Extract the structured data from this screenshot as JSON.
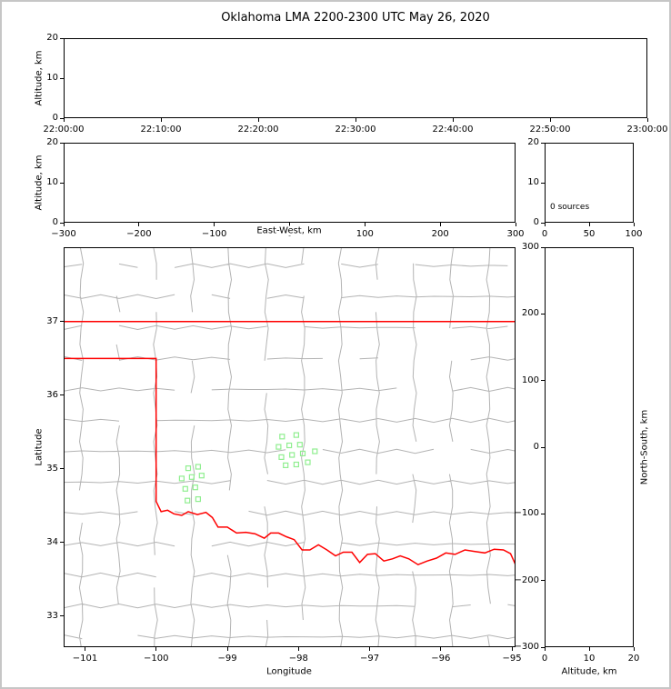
{
  "title": "Oklahoma LMA 2200-2300 UTC May 26, 2020",
  "colors": {
    "background": "#ffffff",
    "figure_frame": "#c6c6c6",
    "axis": "#000000",
    "county_lines": "#b3b3b3",
    "state_border": "#ff0000",
    "station_marker": "#90ee90"
  },
  "chart_data": [
    {
      "panel": "time-height",
      "type": "scatter",
      "xlabel": "",
      "ylabel": "Altitude, km",
      "xlim": [
        0,
        60
      ],
      "ylim": [
        0,
        20
      ],
      "xticks": {
        "values": [
          0,
          10,
          20,
          30,
          40,
          50,
          60
        ],
        "labels": [
          "22:00:00",
          "22:10:00",
          "22:20:00",
          "22:30:00",
          "22:40:00",
          "22:50:00",
          "23:00:00"
        ]
      },
      "yticks": {
        "values": [
          0,
          10,
          20
        ],
        "labels": [
          "0",
          "10",
          "20"
        ]
      },
      "points": []
    },
    {
      "panel": "east-west-height",
      "type": "scatter",
      "xlabel": "East-West, km",
      "ylabel": "Altitude, km",
      "xlim": [
        -300,
        300
      ],
      "ylim": [
        0,
        20
      ],
      "xticks": {
        "values": [
          -300,
          -200,
          -100,
          0,
          100,
          200,
          300
        ],
        "labels": [
          "−300",
          "−200",
          "−100",
          "0",
          "100",
          "200",
          "300"
        ]
      },
      "yticks": {
        "values": [
          0,
          10,
          20
        ],
        "labels": [
          "0",
          "10",
          "20"
        ]
      },
      "points": []
    },
    {
      "panel": "altitude-histogram",
      "type": "histogram",
      "annotation": "0 sources",
      "xlabel": "",
      "ylabel": "",
      "xlim": [
        0,
        100
      ],
      "ylim": [
        0,
        20
      ],
      "xticks": {
        "values": [
          0,
          50,
          100
        ],
        "labels": [
          "0",
          "50",
          "100"
        ]
      },
      "yticks": {
        "values": [
          0,
          10,
          20
        ],
        "labels": [
          "0",
          "10",
          "20"
        ]
      },
      "values": []
    },
    {
      "panel": "plan-view-map",
      "type": "scatter",
      "xlabel": "Longitude",
      "ylabel": "Latitude",
      "xlim": [
        -101.3,
        -94.95
      ],
      "ylim": [
        32.58,
        38.01
      ],
      "xticks": {
        "values": [
          -101,
          -100,
          -99,
          -98,
          -97,
          -96,
          -95
        ],
        "labels": [
          "−101",
          "−100",
          "−99",
          "−98",
          "−97",
          "−96",
          "−95"
        ]
      },
      "yticks": {
        "values": [
          33,
          34,
          35,
          36,
          37
        ],
        "labels": [
          "33",
          "34",
          "35",
          "36",
          "37"
        ]
      },
      "stations": [
        [
          -98.23,
          35.44
        ],
        [
          -98.03,
          35.46
        ],
        [
          -98.28,
          35.3
        ],
        [
          -98.13,
          35.32
        ],
        [
          -97.98,
          35.33
        ],
        [
          -98.24,
          35.16
        ],
        [
          -98.09,
          35.19
        ],
        [
          -97.94,
          35.21
        ],
        [
          -97.77,
          35.24
        ],
        [
          -98.18,
          35.05
        ],
        [
          -98.03,
          35.06
        ],
        [
          -97.87,
          35.09
        ],
        [
          -99.55,
          35.01
        ],
        [
          -99.41,
          35.03
        ],
        [
          -99.64,
          34.87
        ],
        [
          -99.5,
          34.89
        ],
        [
          -99.36,
          34.91
        ],
        [
          -99.59,
          34.73
        ],
        [
          -99.45,
          34.75
        ],
        [
          -99.56,
          34.57
        ],
        [
          -99.41,
          34.59
        ]
      ],
      "state_border": [
        [
          [
            -101.3,
            37.0
          ],
          [
            -94.95,
            37.0
          ]
        ],
        [
          [
            -101.3,
            36.5
          ],
          [
            -100.0,
            36.5
          ],
          [
            -100.0,
            34.56
          ],
          [
            -99.93,
            34.42
          ],
          [
            -99.84,
            34.44
          ],
          [
            -99.75,
            34.39
          ],
          [
            -99.64,
            34.37
          ],
          [
            -99.55,
            34.42
          ],
          [
            -99.42,
            34.38
          ],
          [
            -99.3,
            34.41
          ],
          [
            -99.21,
            34.34
          ],
          [
            -99.13,
            34.21
          ],
          [
            -99.0,
            34.21
          ],
          [
            -98.87,
            34.13
          ],
          [
            -98.74,
            34.14
          ],
          [
            -98.61,
            34.12
          ],
          [
            -98.48,
            34.06
          ],
          [
            -98.39,
            34.13
          ],
          [
            -98.28,
            34.13
          ],
          [
            -98.17,
            34.08
          ],
          [
            -98.06,
            34.04
          ],
          [
            -97.95,
            33.9
          ],
          [
            -97.84,
            33.9
          ],
          [
            -97.72,
            33.97
          ],
          [
            -97.6,
            33.9
          ],
          [
            -97.48,
            33.82
          ],
          [
            -97.37,
            33.87
          ],
          [
            -97.25,
            33.87
          ],
          [
            -97.14,
            33.73
          ],
          [
            -97.03,
            33.84
          ],
          [
            -96.92,
            33.85
          ],
          [
            -96.8,
            33.75
          ],
          [
            -96.68,
            33.78
          ],
          [
            -96.57,
            33.82
          ],
          [
            -96.45,
            33.78
          ],
          [
            -96.32,
            33.7
          ],
          [
            -96.19,
            33.75
          ],
          [
            -96.06,
            33.79
          ],
          [
            -95.93,
            33.86
          ],
          [
            -95.8,
            33.84
          ],
          [
            -95.66,
            33.9
          ],
          [
            -95.52,
            33.88
          ],
          [
            -95.38,
            33.86
          ],
          [
            -95.25,
            33.91
          ],
          [
            -95.12,
            33.9
          ],
          [
            -95.02,
            33.85
          ],
          [
            -94.95,
            33.7
          ]
        ]
      ],
      "county_grid": {
        "lon_start": -101.05,
        "lon_step": 0.52,
        "lon_end": -94.75,
        "lat_start": 32.72,
        "lat_step": 0.42,
        "lat_end": 37.99
      }
    },
    {
      "panel": "north-south-height",
      "type": "scatter",
      "xlabel": "Altitude, km",
      "ylabel": "North-South, km",
      "xlim": [
        0,
        20
      ],
      "ylim": [
        -300,
        300
      ],
      "xticks": {
        "values": [
          0,
          10,
          20
        ],
        "labels": [
          "0",
          "10",
          "20"
        ]
      },
      "yticks": {
        "values": [
          -300,
          -200,
          -100,
          0,
          100,
          200,
          300
        ],
        "labels": [
          "−300",
          "−200",
          "−100",
          "0",
          "100",
          "200",
          "300"
        ]
      },
      "points": []
    }
  ]
}
